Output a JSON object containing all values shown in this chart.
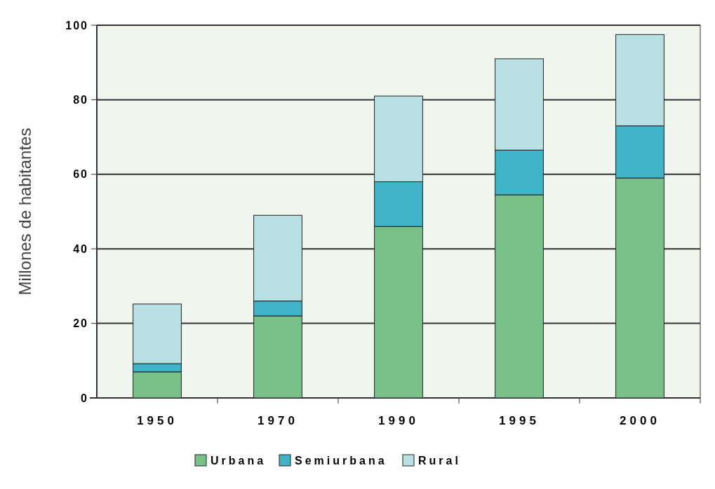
{
  "chart_data": {
    "type": "bar",
    "stacked": true,
    "ylabel": "Millones de habitantes",
    "categories": [
      "1950",
      "1970",
      "1990",
      "1995",
      "2000"
    ],
    "series": [
      {
        "name": "Urbana",
        "color": "#78c28a",
        "values": [
          7,
          22,
          46,
          54.5,
          59
        ]
      },
      {
        "name": "Semiurbana",
        "color": "#3fb3c8",
        "values": [
          2.2,
          4,
          12,
          12,
          14
        ]
      },
      {
        "name": "Rural",
        "color": "#b9e0e2",
        "values": [
          16,
          23,
          23,
          24.5,
          24.5
        ]
      }
    ],
    "ylim": [
      0,
      100
    ],
    "yticks": [
      0,
      20,
      40,
      60,
      80,
      100
    ],
    "grid": "y",
    "legend": "bottom"
  }
}
